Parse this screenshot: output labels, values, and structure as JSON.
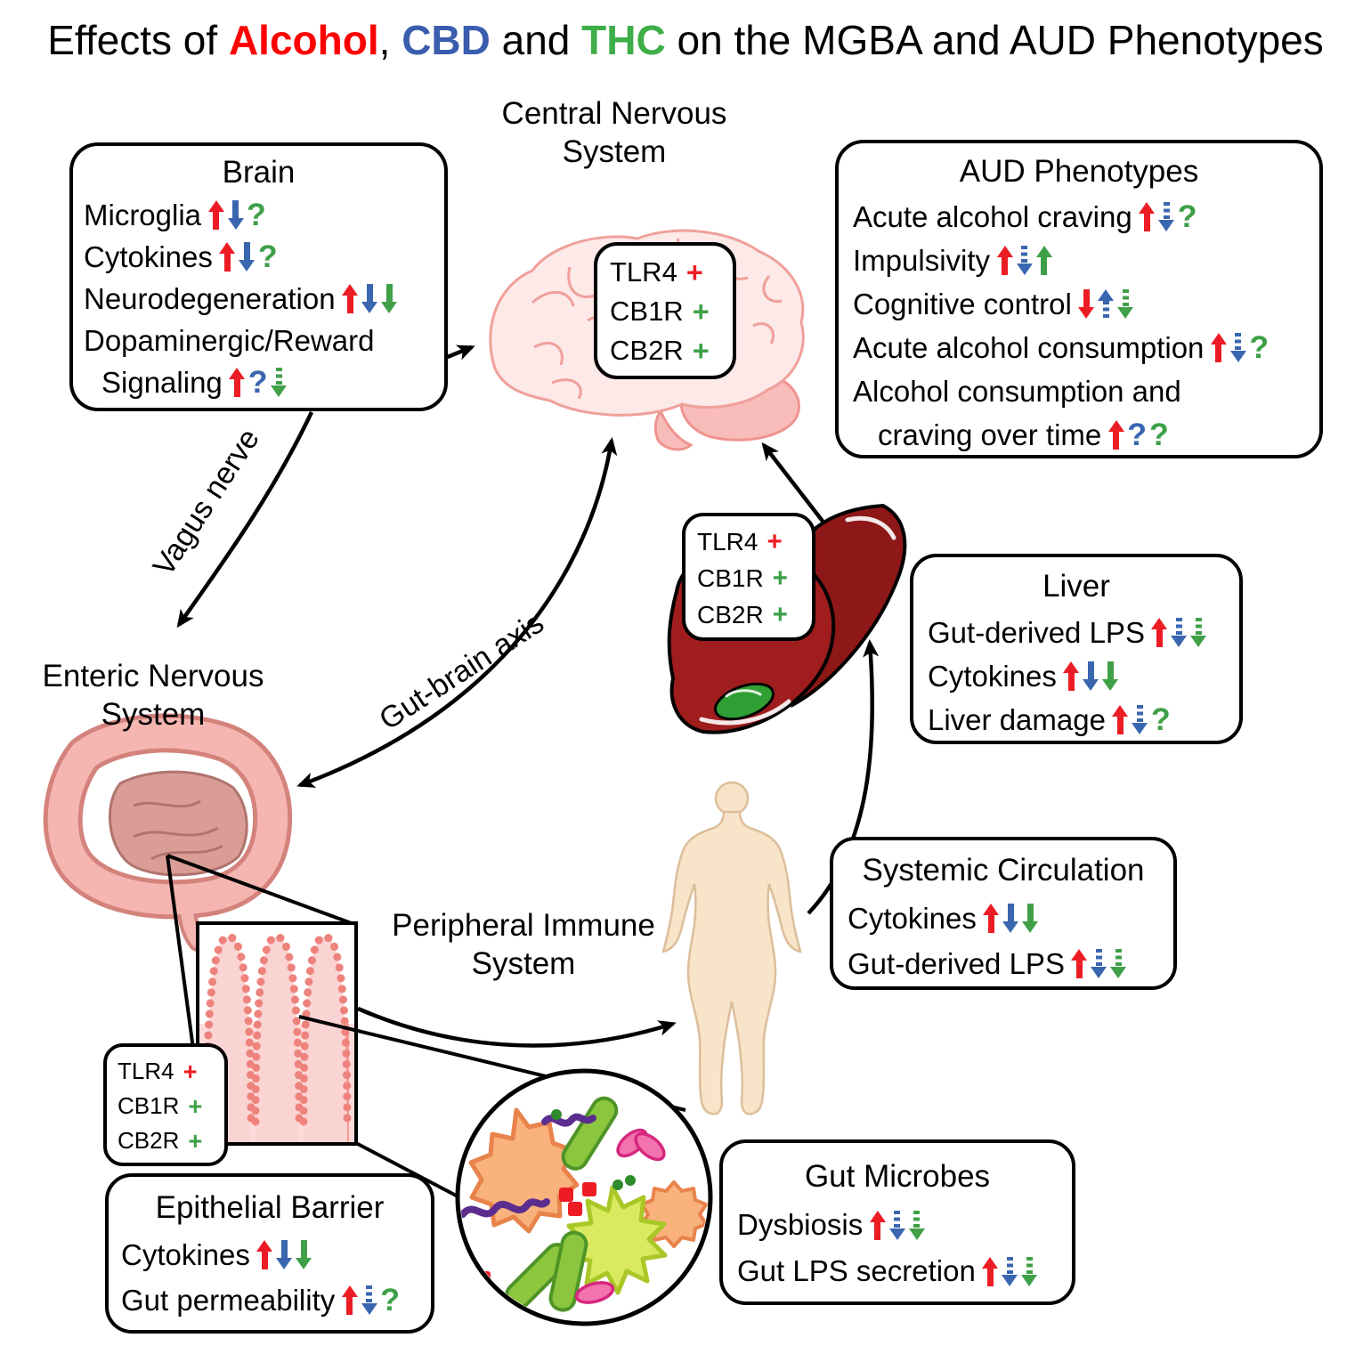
{
  "title": {
    "segments": [
      {
        "text": "Effects of ",
        "color": "#000000",
        "bold": false
      },
      {
        "text": "Alcohol",
        "color": "#FF0000",
        "bold": true
      },
      {
        "text": ", ",
        "color": "#000000",
        "bold": false
      },
      {
        "text": "CBD",
        "color": "#3A5DAE",
        "bold": true
      },
      {
        "text": " and ",
        "color": "#000000",
        "bold": false
      },
      {
        "text": "THC",
        "color": "#3FAE49",
        "bold": true
      },
      {
        "text": " on the MGBA and AUD Phenotypes",
        "color": "#000000",
        "bold": false
      }
    ]
  },
  "legend_colors": {
    "alcohol_red": "#EC1C24",
    "cbd_blue": "#3A66B0",
    "thc_green": "#3FA047"
  },
  "labels": {
    "cns": {
      "line1": "Central Nervous",
      "line2": "System"
    },
    "ens": {
      "line1": "Enteric Nervous",
      "line2": "System"
    },
    "pis": {
      "line1": "Peripheral Immune",
      "line2": "System"
    },
    "vagus": "Vagus nerve",
    "gut_brain_axis": "Gut-brain axis"
  },
  "illustrations": {
    "brain": "human brain",
    "liver": "liver with gallbladder",
    "intestines": "large and small intestines",
    "villi": "intestinal villi inset",
    "microbes": "gut microbes magnified circle",
    "human": "human body silhouette"
  },
  "receptor_boxes": {
    "cns": {
      "items": [
        {
          "label": "TLR4",
          "marks": [
            "plus:red"
          ]
        },
        {
          "label": "CB1R",
          "marks": [
            "plus:green"
          ]
        },
        {
          "label": "CB2R",
          "marks": [
            "plus:green"
          ]
        }
      ]
    },
    "liver": {
      "items": [
        {
          "label": "TLR4",
          "marks": [
            "plus:red"
          ]
        },
        {
          "label": "CB1R",
          "marks": [
            "plus:green"
          ]
        },
        {
          "label": "CB2R",
          "marks": [
            "plus:green"
          ]
        }
      ]
    },
    "gut": {
      "items": [
        {
          "label": "TLR4",
          "marks": [
            "plus:red"
          ]
        },
        {
          "label": "CB1R",
          "marks": [
            "plus:green"
          ]
        },
        {
          "label": "CB2R",
          "marks": [
            "plus:green"
          ]
        }
      ]
    }
  },
  "boxes": {
    "brain": {
      "title": "Brain",
      "items": [
        {
          "label": "Microglia",
          "marks": [
            "up:red",
            "down:blue",
            "q:green"
          ]
        },
        {
          "label": "Cytokines",
          "marks": [
            "up:red",
            "down:blue",
            "q:green"
          ]
        },
        {
          "label": "Neurodegeneration",
          "marks": [
            "up:red",
            "down:blue",
            "down:green"
          ]
        },
        {
          "label": "Dopaminergic/Reward",
          "label2": "Signaling",
          "marks": [
            "up:red",
            "q:blue",
            "down:green:dashed"
          ]
        }
      ]
    },
    "aud": {
      "title": "AUD Phenotypes",
      "items": [
        {
          "label": "Acute alcohol craving",
          "marks": [
            "up:red",
            "down:blue:dashed",
            "q:green"
          ]
        },
        {
          "label": "Impulsivity",
          "marks": [
            "up:red",
            "down:blue:dashed",
            "up:green"
          ]
        },
        {
          "label": "Cognitive control",
          "marks": [
            "down:red",
            "up:blue:dashed",
            "down:green:dashed"
          ]
        },
        {
          "label": "Acute alcohol consumption",
          "marks": [
            "up:red",
            "down:blue:dashed",
            "q:green"
          ]
        },
        {
          "label": "Alcohol consumption and",
          "label2": "craving over time",
          "marks": [
            "up:red",
            "q:blue",
            "q:green"
          ]
        }
      ]
    },
    "liver": {
      "title": "Liver",
      "items": [
        {
          "label": "Gut-derived LPS",
          "marks": [
            "up:red",
            "down:blue:dashed",
            "down:green:dashed"
          ]
        },
        {
          "label": "Cytokines",
          "marks": [
            "up:red",
            "down:blue",
            "down:green"
          ]
        },
        {
          "label": "Liver damage",
          "marks": [
            "up:red",
            "down:blue:dashed",
            "q:green"
          ]
        }
      ]
    },
    "systemic": {
      "title": "Systemic Circulation",
      "items": [
        {
          "label": "Cytokines",
          "marks": [
            "up:red",
            "down:blue",
            "down:green"
          ]
        },
        {
          "label": "Gut-derived LPS",
          "marks": [
            "up:red",
            "down:blue:dashed",
            "down:green:dashed"
          ]
        }
      ]
    },
    "gut_microbes": {
      "title": "Gut Microbes",
      "items": [
        {
          "label": "Dysbiosis",
          "marks": [
            "up:red",
            "down:blue:dashed",
            "down:green:dashed"
          ]
        },
        {
          "label": "Gut LPS secretion",
          "marks": [
            "up:red",
            "down:blue:dashed",
            "down:green:dashed"
          ]
        }
      ]
    },
    "epithelial": {
      "title": "Epithelial Barrier",
      "items": [
        {
          "label": "Cytokines",
          "marks": [
            "up:red",
            "down:blue",
            "down:green"
          ]
        },
        {
          "label": "Gut permeability",
          "marks": [
            "up:red",
            "down:blue:dashed",
            "q:green"
          ]
        }
      ]
    }
  }
}
